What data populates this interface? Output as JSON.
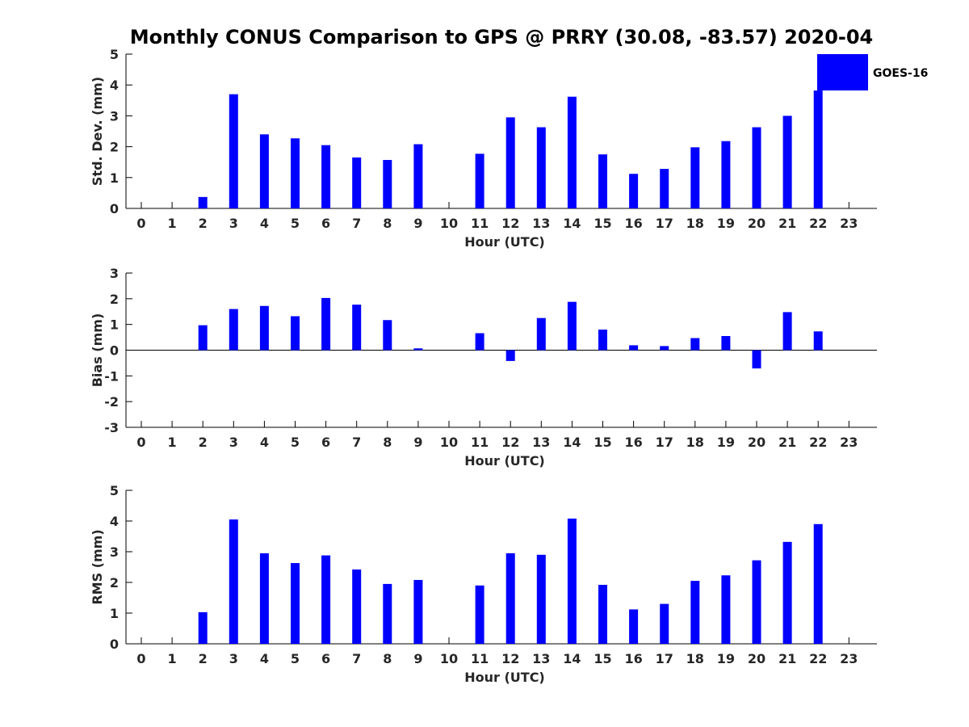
{
  "title": "Monthly CONUS Comparison to GPS @ PRRY (30.08, -83.57) 2020-04",
  "legend": {
    "label": "GOES-16",
    "color": "#0000ff",
    "placement": "top-right"
  },
  "bar_color": "#0000ff",
  "chart_data": [
    {
      "type": "bar",
      "id": "std",
      "ylabel": "Std. Dev. (mm)",
      "xlabel": "Hour (UTC)",
      "ylim": [
        0,
        5
      ],
      "yticks": [
        0,
        1,
        2,
        3,
        4,
        5
      ],
      "categories": [
        0,
        1,
        2,
        3,
        4,
        5,
        6,
        7,
        8,
        9,
        10,
        11,
        12,
        13,
        14,
        15,
        16,
        17,
        18,
        19,
        20,
        21,
        22,
        23
      ],
      "series": [
        {
          "name": "GOES-16",
          "values": [
            null,
            null,
            0.37,
            3.7,
            2.4,
            2.27,
            2.05,
            1.65,
            1.57,
            2.08,
            null,
            1.77,
            2.95,
            2.63,
            3.62,
            1.75,
            1.12,
            1.28,
            1.98,
            2.18,
            2.63,
            3.0,
            3.82,
            null
          ]
        }
      ]
    },
    {
      "type": "bar",
      "id": "bias",
      "ylabel": "Bias (mm)",
      "xlabel": "Hour (UTC)",
      "ylim": [
        -3,
        3
      ],
      "yticks": [
        -3,
        -2,
        -1,
        0,
        1,
        2,
        3
      ],
      "zero_line": true,
      "categories": [
        0,
        1,
        2,
        3,
        4,
        5,
        6,
        7,
        8,
        9,
        10,
        11,
        12,
        13,
        14,
        15,
        16,
        17,
        18,
        19,
        20,
        21,
        22,
        23
      ],
      "series": [
        {
          "name": "GOES-16",
          "values": [
            null,
            null,
            0.97,
            1.6,
            1.72,
            1.32,
            2.03,
            1.77,
            1.17,
            0.07,
            null,
            0.66,
            -0.42,
            1.25,
            1.88,
            0.8,
            0.19,
            0.16,
            0.47,
            0.55,
            -0.71,
            1.48,
            0.73,
            null
          ]
        }
      ]
    },
    {
      "type": "bar",
      "id": "rms",
      "ylabel": "RMS (mm)",
      "xlabel": "Hour (UTC)",
      "ylim": [
        0,
        5
      ],
      "yticks": [
        0,
        1,
        2,
        3,
        4,
        5
      ],
      "categories": [
        0,
        1,
        2,
        3,
        4,
        5,
        6,
        7,
        8,
        9,
        10,
        11,
        12,
        13,
        14,
        15,
        16,
        17,
        18,
        19,
        20,
        21,
        22,
        23
      ],
      "series": [
        {
          "name": "GOES-16",
          "values": [
            null,
            null,
            1.03,
            4.05,
            2.95,
            2.63,
            2.88,
            2.42,
            1.95,
            2.08,
            null,
            1.9,
            2.95,
            2.9,
            4.08,
            1.92,
            1.12,
            1.3,
            2.05,
            2.23,
            2.72,
            3.32,
            3.9,
            null
          ]
        }
      ]
    }
  ]
}
